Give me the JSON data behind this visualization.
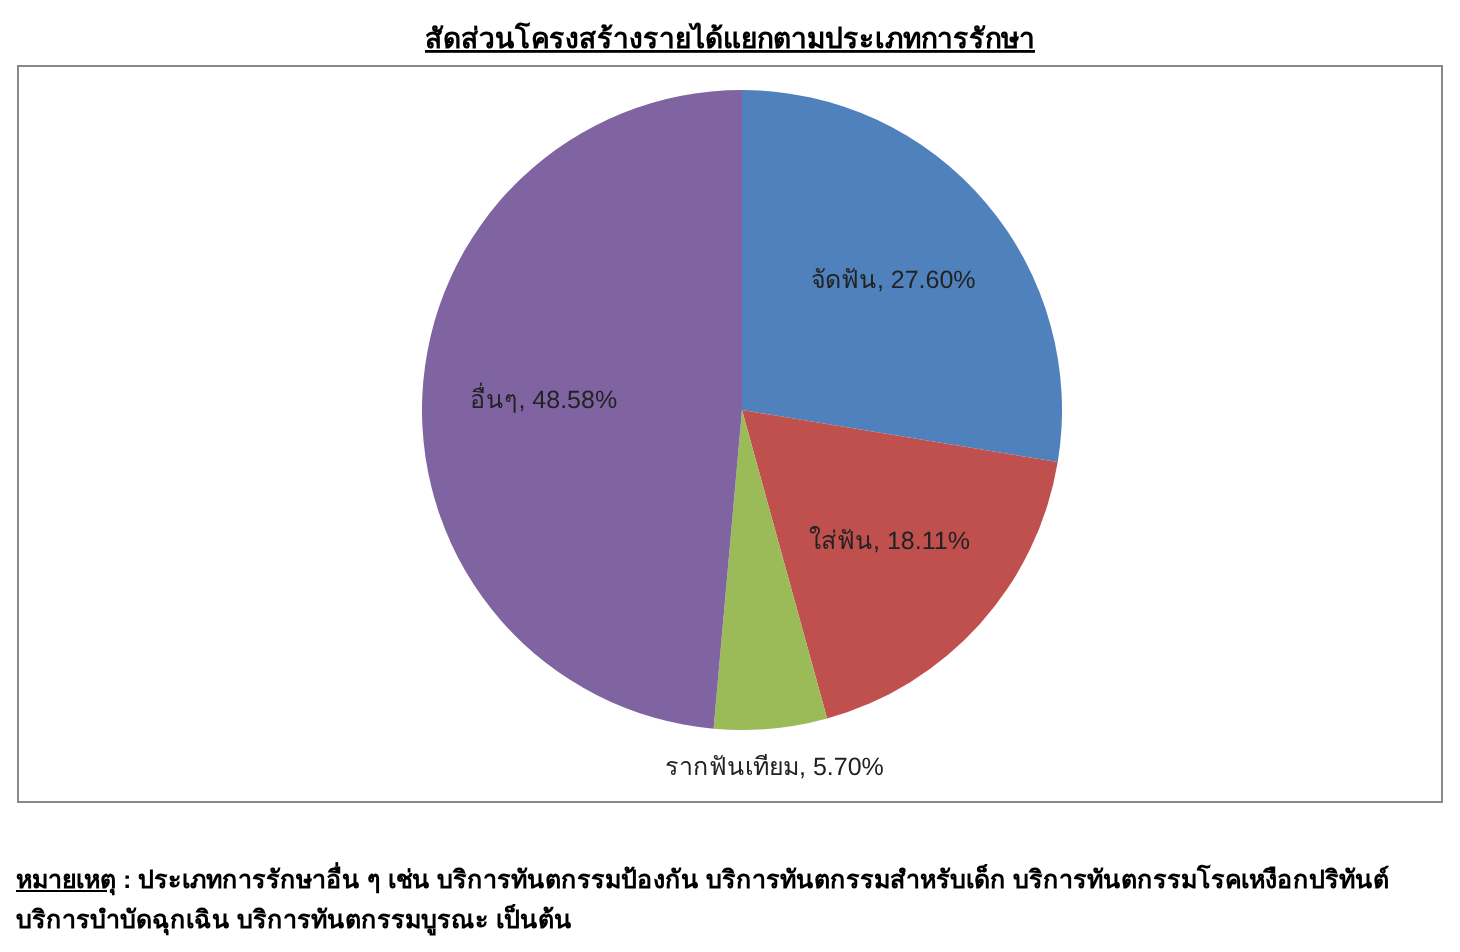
{
  "chart_data": {
    "type": "pie",
    "title": "สัดส่วนโครงสร้างรายได้แยกตามประเภทการรักษา",
    "categories": [
      "จัดฟัน",
      "ใส่ฟัน",
      "รากฟันเทียม",
      "อื่นๆ"
    ],
    "values": [
      27.6,
      18.11,
      5.7,
      48.58
    ],
    "value_labels": [
      "27.60%",
      "18.11%",
      "5.70%",
      "48.58%"
    ],
    "colors": [
      "#4f81bd",
      "#c0504d",
      "#9bbb59",
      "#8064a2"
    ],
    "annotations": [
      "หมายเหตุ :  ประเภทการรักษาอื่น ๆ เช่น บริการทันตกรรมป้องกัน บริการทันตกรรมสำหรับเด็ก บริการทันตกรรมโรคเหงือกปริทันต์ บริการบำบัดฉุกเฉิน บริการทันตกรรมบูรณะ เป็นต้น"
    ]
  }
}
